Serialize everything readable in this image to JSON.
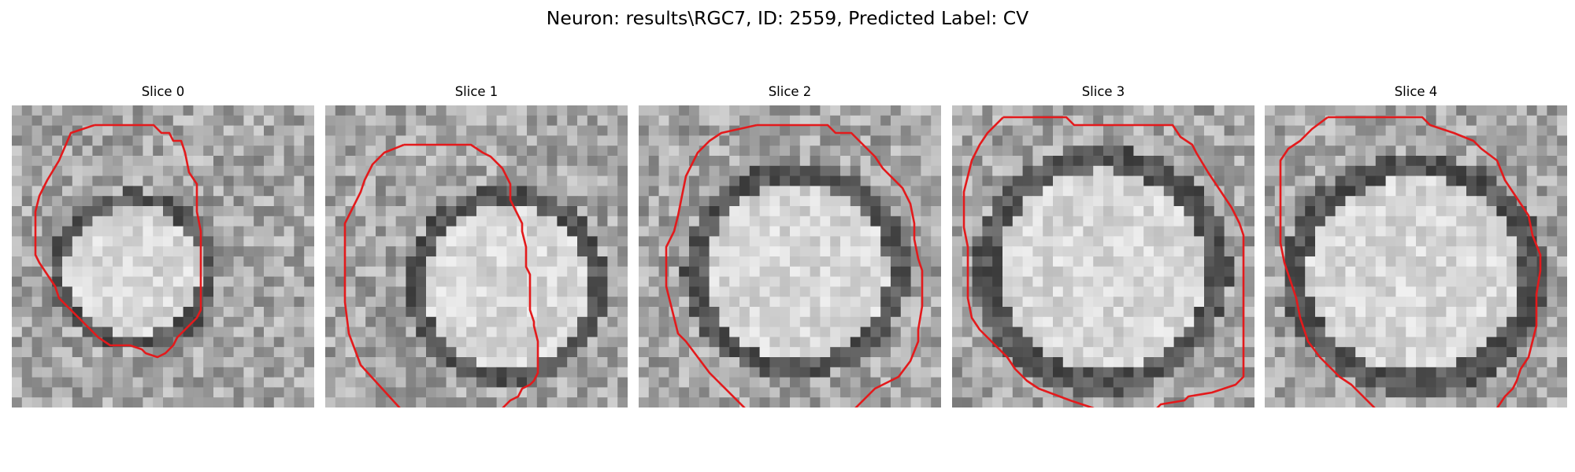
{
  "figure": {
    "title": "Neuron: results\\RGC7, ID: 2559, Predicted Label: CV"
  },
  "contour_color": "#e31a1c",
  "panels": [
    {
      "title": "Slice 0"
    },
    {
      "title": "Slice 1"
    },
    {
      "title": "Slice 2"
    },
    {
      "title": "Slice 3"
    },
    {
      "title": "Slice 4"
    }
  ]
}
